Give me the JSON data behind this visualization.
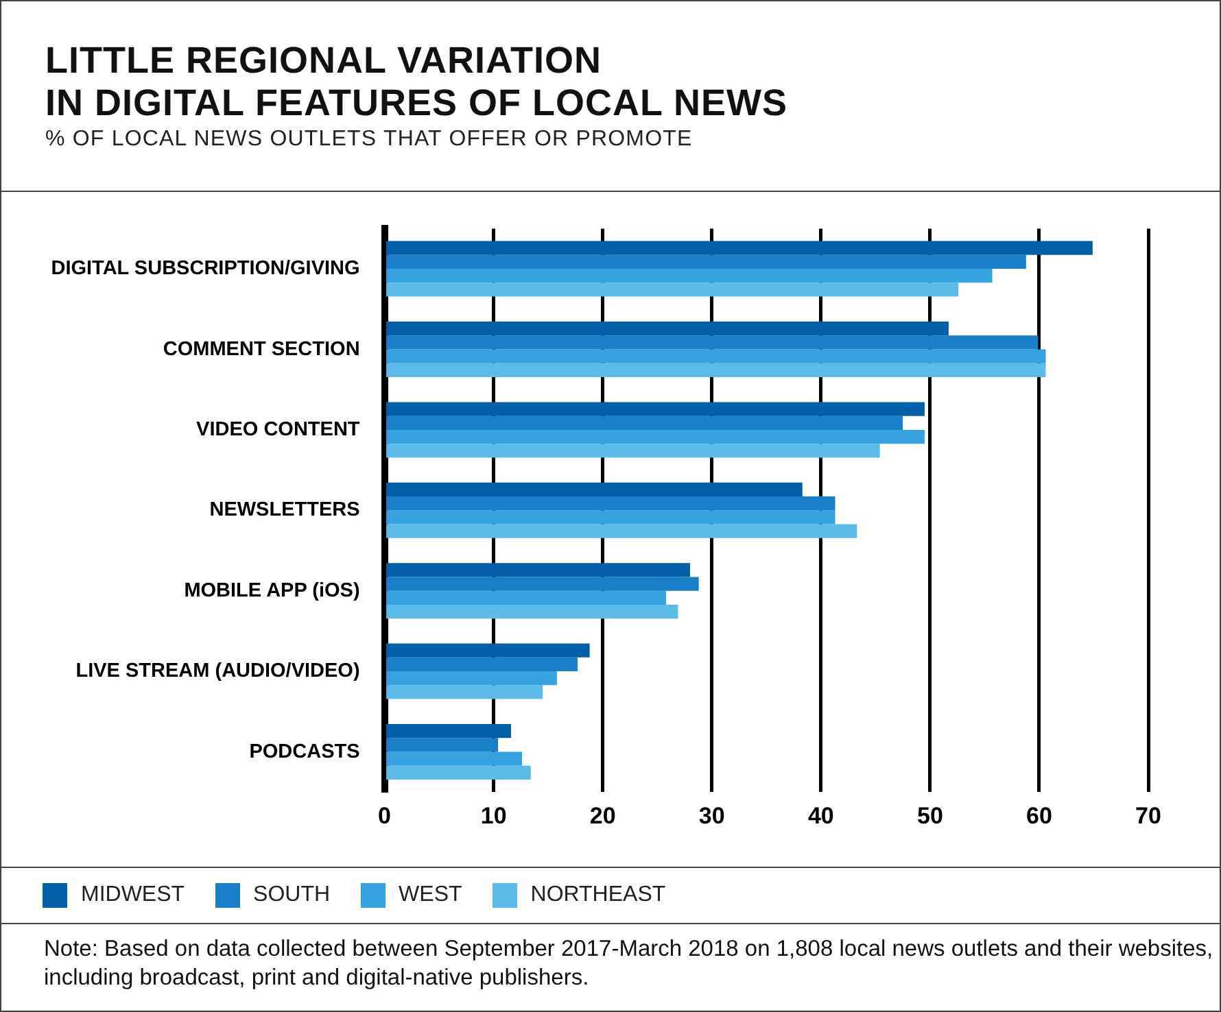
{
  "chart_data": {
    "type": "bar",
    "orientation": "horizontal",
    "title": "LITTLE REGIONAL VARIATION\nIN DIGITAL FEATURES OF LOCAL NEWS",
    "subtitle": "% OF LOCAL NEWS OUTLETS THAT OFFER OR PROMOTE",
    "categories": [
      "DIGITAL SUBSCRIPTION/GIVING",
      "COMMENT SECTION",
      "VIDEO CONTENT",
      "NEWSLETTERS",
      "MOBILE APP (iOS)",
      "LIVE STREAM (AUDIO/VIDEO)",
      "PODCASTS"
    ],
    "series": [
      {
        "name": "MIDWEST",
        "color": "#035fa8",
        "values": [
          64.9,
          51.7,
          49.5,
          38.3,
          28.0,
          18.8,
          11.6
        ]
      },
      {
        "name": "SOUTH",
        "color": "#1a7fc8",
        "values": [
          58.8,
          59.9,
          47.5,
          41.3,
          28.8,
          17.7,
          10.4
        ]
      },
      {
        "name": "WEST",
        "color": "#36a3e0",
        "values": [
          55.7,
          60.6,
          49.5,
          41.3,
          25.8,
          15.8,
          12.6
        ]
      },
      {
        "name": "NORTHEAST",
        "color": "#5cbbe8",
        "values": [
          52.6,
          60.6,
          45.4,
          43.3,
          26.9,
          14.5,
          13.4
        ]
      }
    ],
    "xlim": [
      0,
      70
    ],
    "xticks": [
      0,
      10,
      20,
      30,
      40,
      50,
      60,
      70
    ],
    "grid": "x",
    "legend": "bottom left",
    "annotations": [
      "Note: Based on data collected between September 2017-March 2018 on 1,808 local news outlets and their websites, including broadcast, print and digital-native publishers."
    ]
  }
}
